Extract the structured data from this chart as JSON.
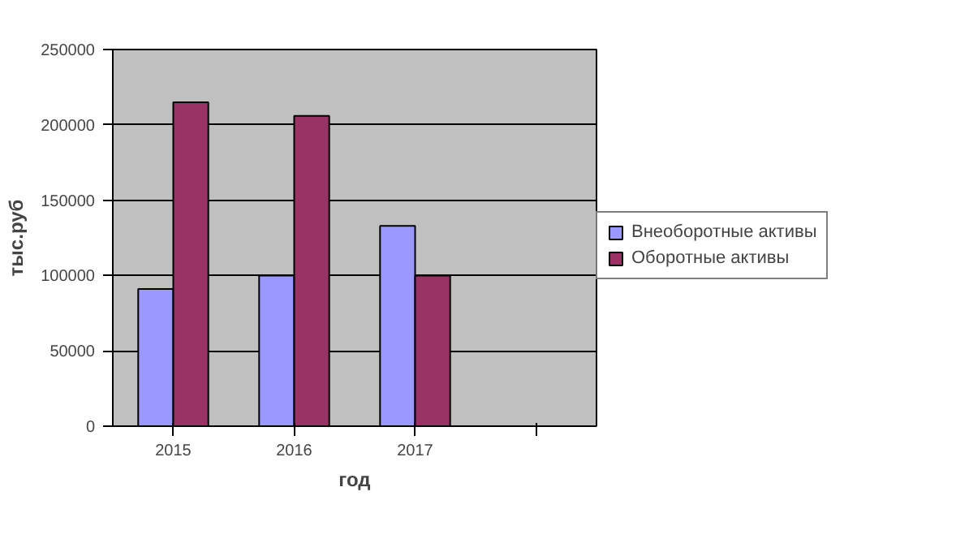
{
  "chart_data": {
    "type": "bar",
    "xlabel": "год",
    "ylabel": "тыс.руб",
    "categories": [
      "2015",
      "2016",
      "2017",
      null
    ],
    "series": [
      {
        "name": "Внеоборотные активы",
        "color": "#9999ff",
        "values": [
          91000,
          100000,
          133000,
          null
        ]
      },
      {
        "name": "Оборотные активы",
        "color": "#993366",
        "values": [
          215000,
          206000,
          100000,
          null
        ]
      }
    ],
    "ylim": [
      0,
      250000
    ],
    "yticks": [
      0,
      50000,
      100000,
      150000,
      200000,
      250000
    ],
    "grid": "y",
    "legend": "right"
  }
}
